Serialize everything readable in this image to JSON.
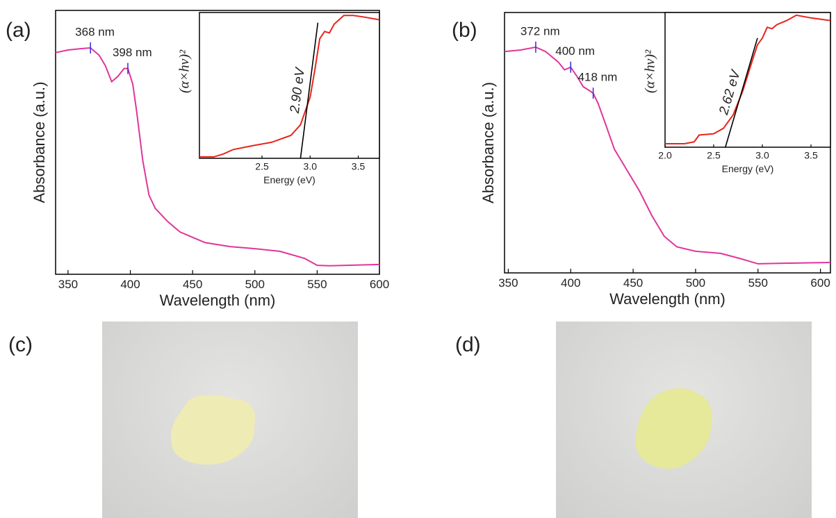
{
  "chart_data": [
    {
      "type": "line",
      "panel": "(a)",
      "xlabel": "Wavelength (nm)",
      "ylabel": "Absorbance (a.u.)",
      "xlim": [
        340,
        600
      ],
      "xticks": [
        350,
        400,
        450,
        500,
        550,
        600
      ],
      "ylim": [
        0,
        1
      ],
      "color": "#e0349a",
      "x": [
        340,
        350,
        360,
        368,
        375,
        380,
        385,
        390,
        395,
        398,
        402,
        405,
        410,
        415,
        420,
        430,
        440,
        450,
        460,
        480,
        500,
        520,
        540,
        550,
        560,
        600
      ],
      "values": [
        0.84,
        0.85,
        0.855,
        0.858,
        0.83,
        0.79,
        0.73,
        0.75,
        0.78,
        0.78,
        0.72,
        0.62,
        0.43,
        0.3,
        0.25,
        0.2,
        0.16,
        0.14,
        0.12,
        0.105,
        0.097,
        0.087,
        0.06,
        0.034,
        0.032,
        0.037
      ],
      "annotations": [
        {
          "x": 368,
          "y": 0.858,
          "label": "368 nm"
        },
        {
          "x": 398,
          "y": 0.78,
          "label": "398 nm"
        }
      ],
      "inset": {
        "type": "line",
        "xlabel": "Energy (eV)",
        "ylabel": "(α×hν)²",
        "xlim": [
          1.85,
          3.72
        ],
        "ylim": [
          0,
          1
        ],
        "xticks": [
          2.5,
          {
            "value": 3,
            "label": "3.0"
          },
          3.5
        ],
        "annotation": "2.90 eV",
        "series": [
          {
            "color": "#e8231d",
            "x": [
              1.85,
              2.0,
              2.1,
              2.2,
              2.4,
              2.6,
              2.8,
              2.9,
              3.0,
              3.05,
              3.1,
              3.15,
              3.2,
              3.25,
              3.35,
              3.45,
              3.55,
              3.72
            ],
            "values": [
              0.01,
              0.01,
              0.03,
              0.06,
              0.086,
              0.11,
              0.157,
              0.23,
              0.42,
              0.61,
              0.82,
              0.87,
              0.86,
              0.92,
              0.98,
              0.98,
              0.97,
              0.95
            ]
          },
          {
            "color": "#000000",
            "x": [
              2.9,
              3.08
            ],
            "values": [
              0,
              0.93
            ]
          }
        ]
      }
    },
    {
      "type": "line",
      "panel": "(b)",
      "xlabel": "Wavelength (nm)",
      "ylabel": "Absorbance (a.u.)",
      "xlim": [
        347,
        608
      ],
      "xticks": [
        350,
        400,
        450,
        500,
        550,
        600
      ],
      "ylim": [
        0,
        1
      ],
      "color": "#e0349a",
      "x": [
        347,
        360,
        372,
        380,
        390,
        395,
        400,
        405,
        410,
        415,
        418,
        422,
        428,
        435,
        445,
        455,
        465,
        475,
        485,
        500,
        520,
        535,
        550,
        570,
        608
      ],
      "values": [
        0.85,
        0.856,
        0.867,
        0.85,
        0.81,
        0.78,
        0.79,
        0.755,
        0.715,
        0.7,
        0.69,
        0.65,
        0.57,
        0.475,
        0.395,
        0.315,
        0.22,
        0.14,
        0.1,
        0.083,
        0.075,
        0.056,
        0.035,
        0.037,
        0.04
      ],
      "annotations": [
        {
          "x": 372,
          "y": 0.867,
          "label": "372 nm"
        },
        {
          "x": 400,
          "y": 0.79,
          "label": "400 nm"
        },
        {
          "x": 418,
          "y": 0.69,
          "label": "418 nm"
        }
      ],
      "inset": {
        "type": "line",
        "xlabel": "Energy (eV)",
        "ylabel": "(α×hν)²",
        "xlim": [
          2.0,
          3.7
        ],
        "ylim": [
          0,
          1
        ],
        "xticks": [
          {
            "value": 2,
            "label": "2.0"
          },
          2.5,
          {
            "value": 3,
            "label": "3.0"
          },
          3.5
        ],
        "annotation": "2.62 eV",
        "series": [
          {
            "color": "#e8231d",
            "x": [
              2.0,
              2.2,
              2.3,
              2.35,
              2.5,
              2.6,
              2.7,
              2.8,
              2.9,
              2.95,
              3.0,
              3.05,
              3.1,
              3.15,
              3.25,
              3.35,
              3.5,
              3.7
            ],
            "values": [
              0.026,
              0.026,
              0.04,
              0.09,
              0.1,
              0.14,
              0.24,
              0.42,
              0.65,
              0.76,
              0.81,
              0.89,
              0.88,
              0.91,
              0.94,
              0.98,
              0.96,
              0.94
            ]
          },
          {
            "color": "#000000",
            "x": [
              2.62,
              2.95
            ],
            "values": [
              0,
              0.81
            ]
          }
        ]
      }
    }
  ],
  "photos": [
    {
      "label": "(c)"
    },
    {
      "label": "(d)"
    }
  ]
}
